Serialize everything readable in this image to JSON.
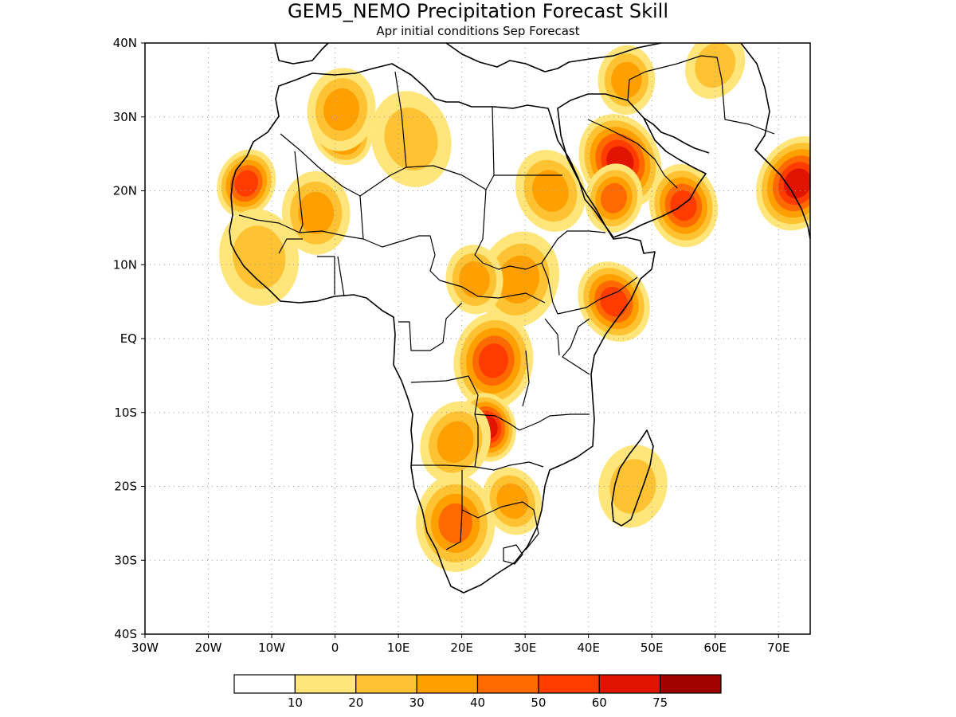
{
  "title": "GEM5_NEMO Precipitation Forecast Skill",
  "subtitle": "Apr initial conditions  Sep Forecast",
  "map": {
    "lon_range": [
      -30,
      75
    ],
    "lat_range": [
      -40,
      40
    ],
    "lon_ticks": [
      {
        "value": -30,
        "label": "30W"
      },
      {
        "value": -20,
        "label": "20W"
      },
      {
        "value": -10,
        "label": "10W"
      },
      {
        "value": 0,
        "label": "0"
      },
      {
        "value": 10,
        "label": "10E"
      },
      {
        "value": 20,
        "label": "20E"
      },
      {
        "value": 30,
        "label": "30E"
      },
      {
        "value": 40,
        "label": "40E"
      },
      {
        "value": 50,
        "label": "50E"
      },
      {
        "value": 60,
        "label": "60E"
      },
      {
        "value": 70,
        "label": "70E"
      }
    ],
    "lat_ticks": [
      {
        "value": 40,
        "label": "40N"
      },
      {
        "value": 30,
        "label": "30N"
      },
      {
        "value": 20,
        "label": "20N"
      },
      {
        "value": 10,
        "label": "10N"
      },
      {
        "value": 0,
        "label": "EQ"
      },
      {
        "value": -10,
        "label": "10S"
      },
      {
        "value": -20,
        "label": "20S"
      },
      {
        "value": -30,
        "label": "30S"
      },
      {
        "value": -40,
        "label": "40S"
      }
    ],
    "grid": "dotted"
  },
  "legend": {
    "bins": [
      {
        "color": "#ffffff"
      },
      {
        "color": "#ffe57a"
      },
      {
        "color": "#ffc232"
      },
      {
        "color": "#ffa000"
      },
      {
        "color": "#ff6a00"
      },
      {
        "color": "#ff3c00"
      },
      {
        "color": "#e01400"
      },
      {
        "color": "#a00000"
      }
    ],
    "labels": [
      "10",
      "20",
      "30",
      "40",
      "50",
      "60",
      "75"
    ]
  },
  "skill_regions": [
    {
      "lon": 1,
      "lat": 28,
      "level": 5
    },
    {
      "lon": 1,
      "lat": 31,
      "level": 3
    },
    {
      "lon": 12,
      "lat": 27,
      "level": 2
    },
    {
      "lon": -14,
      "lat": 21,
      "level": 5
    },
    {
      "lon": -3,
      "lat": 17,
      "level": 3
    },
    {
      "lon": 45,
      "lat": 24,
      "level": 6
    },
    {
      "lon": 44,
      "lat": 19,
      "level": 4
    },
    {
      "lon": 55,
      "lat": 18,
      "level": 5
    },
    {
      "lon": 73,
      "lat": 21,
      "level": 6
    },
    {
      "lon": 46,
      "lat": 35,
      "level": 3
    },
    {
      "lon": 34,
      "lat": 20,
      "level": 3
    },
    {
      "lon": 29,
      "lat": 8,
      "level": 3
    },
    {
      "lon": 22,
      "lat": 8,
      "level": 3
    },
    {
      "lon": 44,
      "lat": 5,
      "level": 5
    },
    {
      "lon": 25,
      "lat": -3,
      "level": 5
    },
    {
      "lon": 24,
      "lat": -12,
      "level": 6
    },
    {
      "lon": 19,
      "lat": -14,
      "level": 3
    },
    {
      "lon": 19,
      "lat": -25,
      "level": 4
    },
    {
      "lon": 28,
      "lat": -22,
      "level": 3
    },
    {
      "lon": 47,
      "lat": -20,
      "level": 2
    },
    {
      "lon": -12,
      "lat": 11,
      "level": 2
    },
    {
      "lon": 60,
      "lat": 37,
      "level": 2
    }
  ]
}
